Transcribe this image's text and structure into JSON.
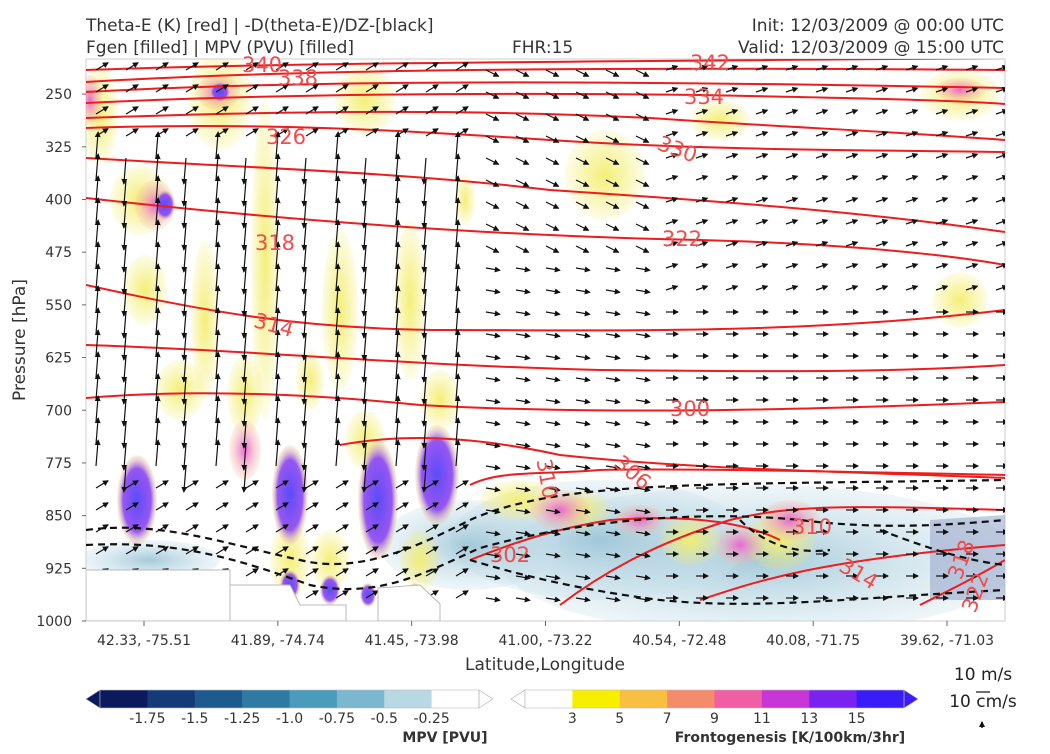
{
  "header": {
    "title_left_1": "Theta-E (K) [red] | -D(theta-E)/DZ-[black]",
    "title_left_2": "Fgen [filled] | MPV (PVU) [filled]",
    "fhr": "FHR:15",
    "init": "Init: 12/03/2009 @ 00:00 UTC",
    "valid": "Valid: 12/03/2009 @ 15:00 UTC"
  },
  "chart_data": {
    "type": "cross-section",
    "xlabel": "Latitude,Longitude",
    "ylabel": "Pressure [hPa]",
    "x_ticks": [
      "42.33, -75.51",
      "41.89, -74.74",
      "41.45, -73.98",
      "41.00, -73.22",
      "40.54, -72.48",
      "40.08, -71.75",
      "39.62, -71.03"
    ],
    "y_ticks": [
      250,
      325,
      400,
      475,
      550,
      625,
      700,
      775,
      850,
      925,
      1000
    ],
    "ylim": [
      1000,
      200
    ],
    "theta_e_contours": [
      {
        "label": "340",
        "level": 340
      },
      {
        "label": "338",
        "level": 338
      },
      {
        "label": "342",
        "level": 342
      },
      {
        "label": "334",
        "level": 334
      },
      {
        "label": "326",
        "level": 326
      },
      {
        "label": "330",
        "level": 330
      },
      {
        "label": "318",
        "level": 318
      },
      {
        "label": "322",
        "level": 322
      },
      {
        "label": "314",
        "level": 314
      },
      {
        "label": "310",
        "level": 310
      },
      {
        "label": "306",
        "level": 306
      },
      {
        "label": "302",
        "level": 302
      },
      {
        "label": "300",
        "level": 300
      },
      {
        "label": "310",
        "level": 310
      },
      {
        "label": "314",
        "level": 314
      },
      {
        "label": "318",
        "level": 318
      },
      {
        "label": "322",
        "level": 322
      }
    ],
    "colorbar_mpv": {
      "label": "MPV [PVU]",
      "ticks": [
        "-1.75",
        "-1.5",
        "-1.25",
        "-1.0",
        "-0.75",
        "-0.5",
        "-0.25"
      ],
      "colors": [
        "#0a1a5c",
        "#143a78",
        "#1e5a8e",
        "#2f7aa3",
        "#4a9bbc",
        "#7bb7cf",
        "#b8d8e4",
        "#ffffff"
      ]
    },
    "colorbar_fgen": {
      "label": "Frontogenesis [K/100km/3hr]",
      "ticks": [
        "3",
        "5",
        "7",
        "9",
        "11",
        "13",
        "15"
      ],
      "colors": [
        "#ffffff",
        "#f6f000",
        "#f8bf40",
        "#f48c6c",
        "#f05ea4",
        "#c936d8",
        "#7a22f0",
        "#3a1cf8"
      ]
    },
    "wind_reference": {
      "horizontal": "10 m/s",
      "vertical": "10 cm/s"
    }
  }
}
